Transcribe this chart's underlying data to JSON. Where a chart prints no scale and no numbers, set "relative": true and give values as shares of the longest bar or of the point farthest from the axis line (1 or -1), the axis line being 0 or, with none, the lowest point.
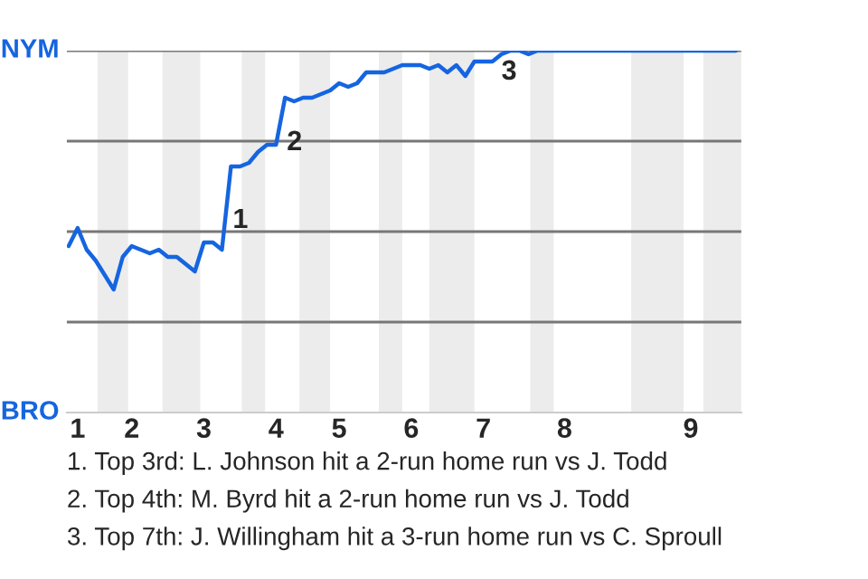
{
  "chart_data": {
    "type": "line",
    "relative": true,
    "categories": [
      null,
      "1",
      null,
      null,
      null,
      null,
      null,
      "2",
      null,
      null,
      null,
      null,
      null,
      null,
      null,
      "3",
      null,
      null,
      null,
      null,
      null,
      null,
      null,
      "4",
      null,
      null,
      null,
      null,
      null,
      null,
      "5",
      null,
      null,
      null,
      null,
      null,
      null,
      null,
      "6",
      null,
      null,
      null,
      null,
      null,
      null,
      null,
      "7",
      null,
      null,
      null,
      null,
      null,
      null,
      null,
      null,
      "8",
      null,
      null,
      null,
      null,
      null,
      null,
      null,
      null,
      null,
      null,
      null,
      null,
      null,
      "9",
      null,
      null,
      null,
      null,
      null
    ],
    "series": [
      {
        "color": "#1565e0",
        "values": [
          0.46,
          0.51,
          0.45,
          0.42,
          0.38,
          0.34,
          0.43,
          0.46,
          0.45,
          0.44,
          0.45,
          0.43,
          0.43,
          0.41,
          0.39,
          0.47,
          0.47,
          0.45,
          0.68,
          0.68,
          0.69,
          0.72,
          0.74,
          0.74,
          0.87,
          0.86,
          0.87,
          0.87,
          0.88,
          0.89,
          0.91,
          0.9,
          0.91,
          0.94,
          0.94,
          0.94,
          0.95,
          0.96,
          0.96,
          0.96,
          0.95,
          0.96,
          0.94,
          0.96,
          0.93,
          0.97,
          0.97,
          0.97,
          0.99,
          1,
          1,
          0.99,
          1,
          1,
          1,
          1,
          1,
          1,
          1,
          1,
          1,
          1,
          1,
          1,
          1,
          1,
          1,
          1,
          1,
          1,
          1,
          1,
          1,
          1,
          1
        ]
      }
    ],
    "grid": false,
    "legend": false,
    "marker": "none",
    "line_style": "solid",
    "ref_lines": [
      {
        "axis": "y",
        "value": 0.25,
        "color": "#777777"
      },
      {
        "axis": "y",
        "value": 0.5,
        "color": "#777777"
      },
      {
        "axis": "y",
        "value": 0.75,
        "color": "#777777"
      },
      {
        "axis": "y",
        "value": 1,
        "color": "#777777"
      }
    ],
    "annotations": [
      "NYM",
      "BRO",
      "1",
      "2",
      "3",
      "1. Top 3rd: L. Johnson hit a 2-run home run vs J. Todd",
      "2. Top 4th: M. Byrd hit a 2-run home run vs J. Todd",
      "3. Top 7th: J. Willingham hit a 3-run home run vs C. Sproull"
    ]
  }
}
